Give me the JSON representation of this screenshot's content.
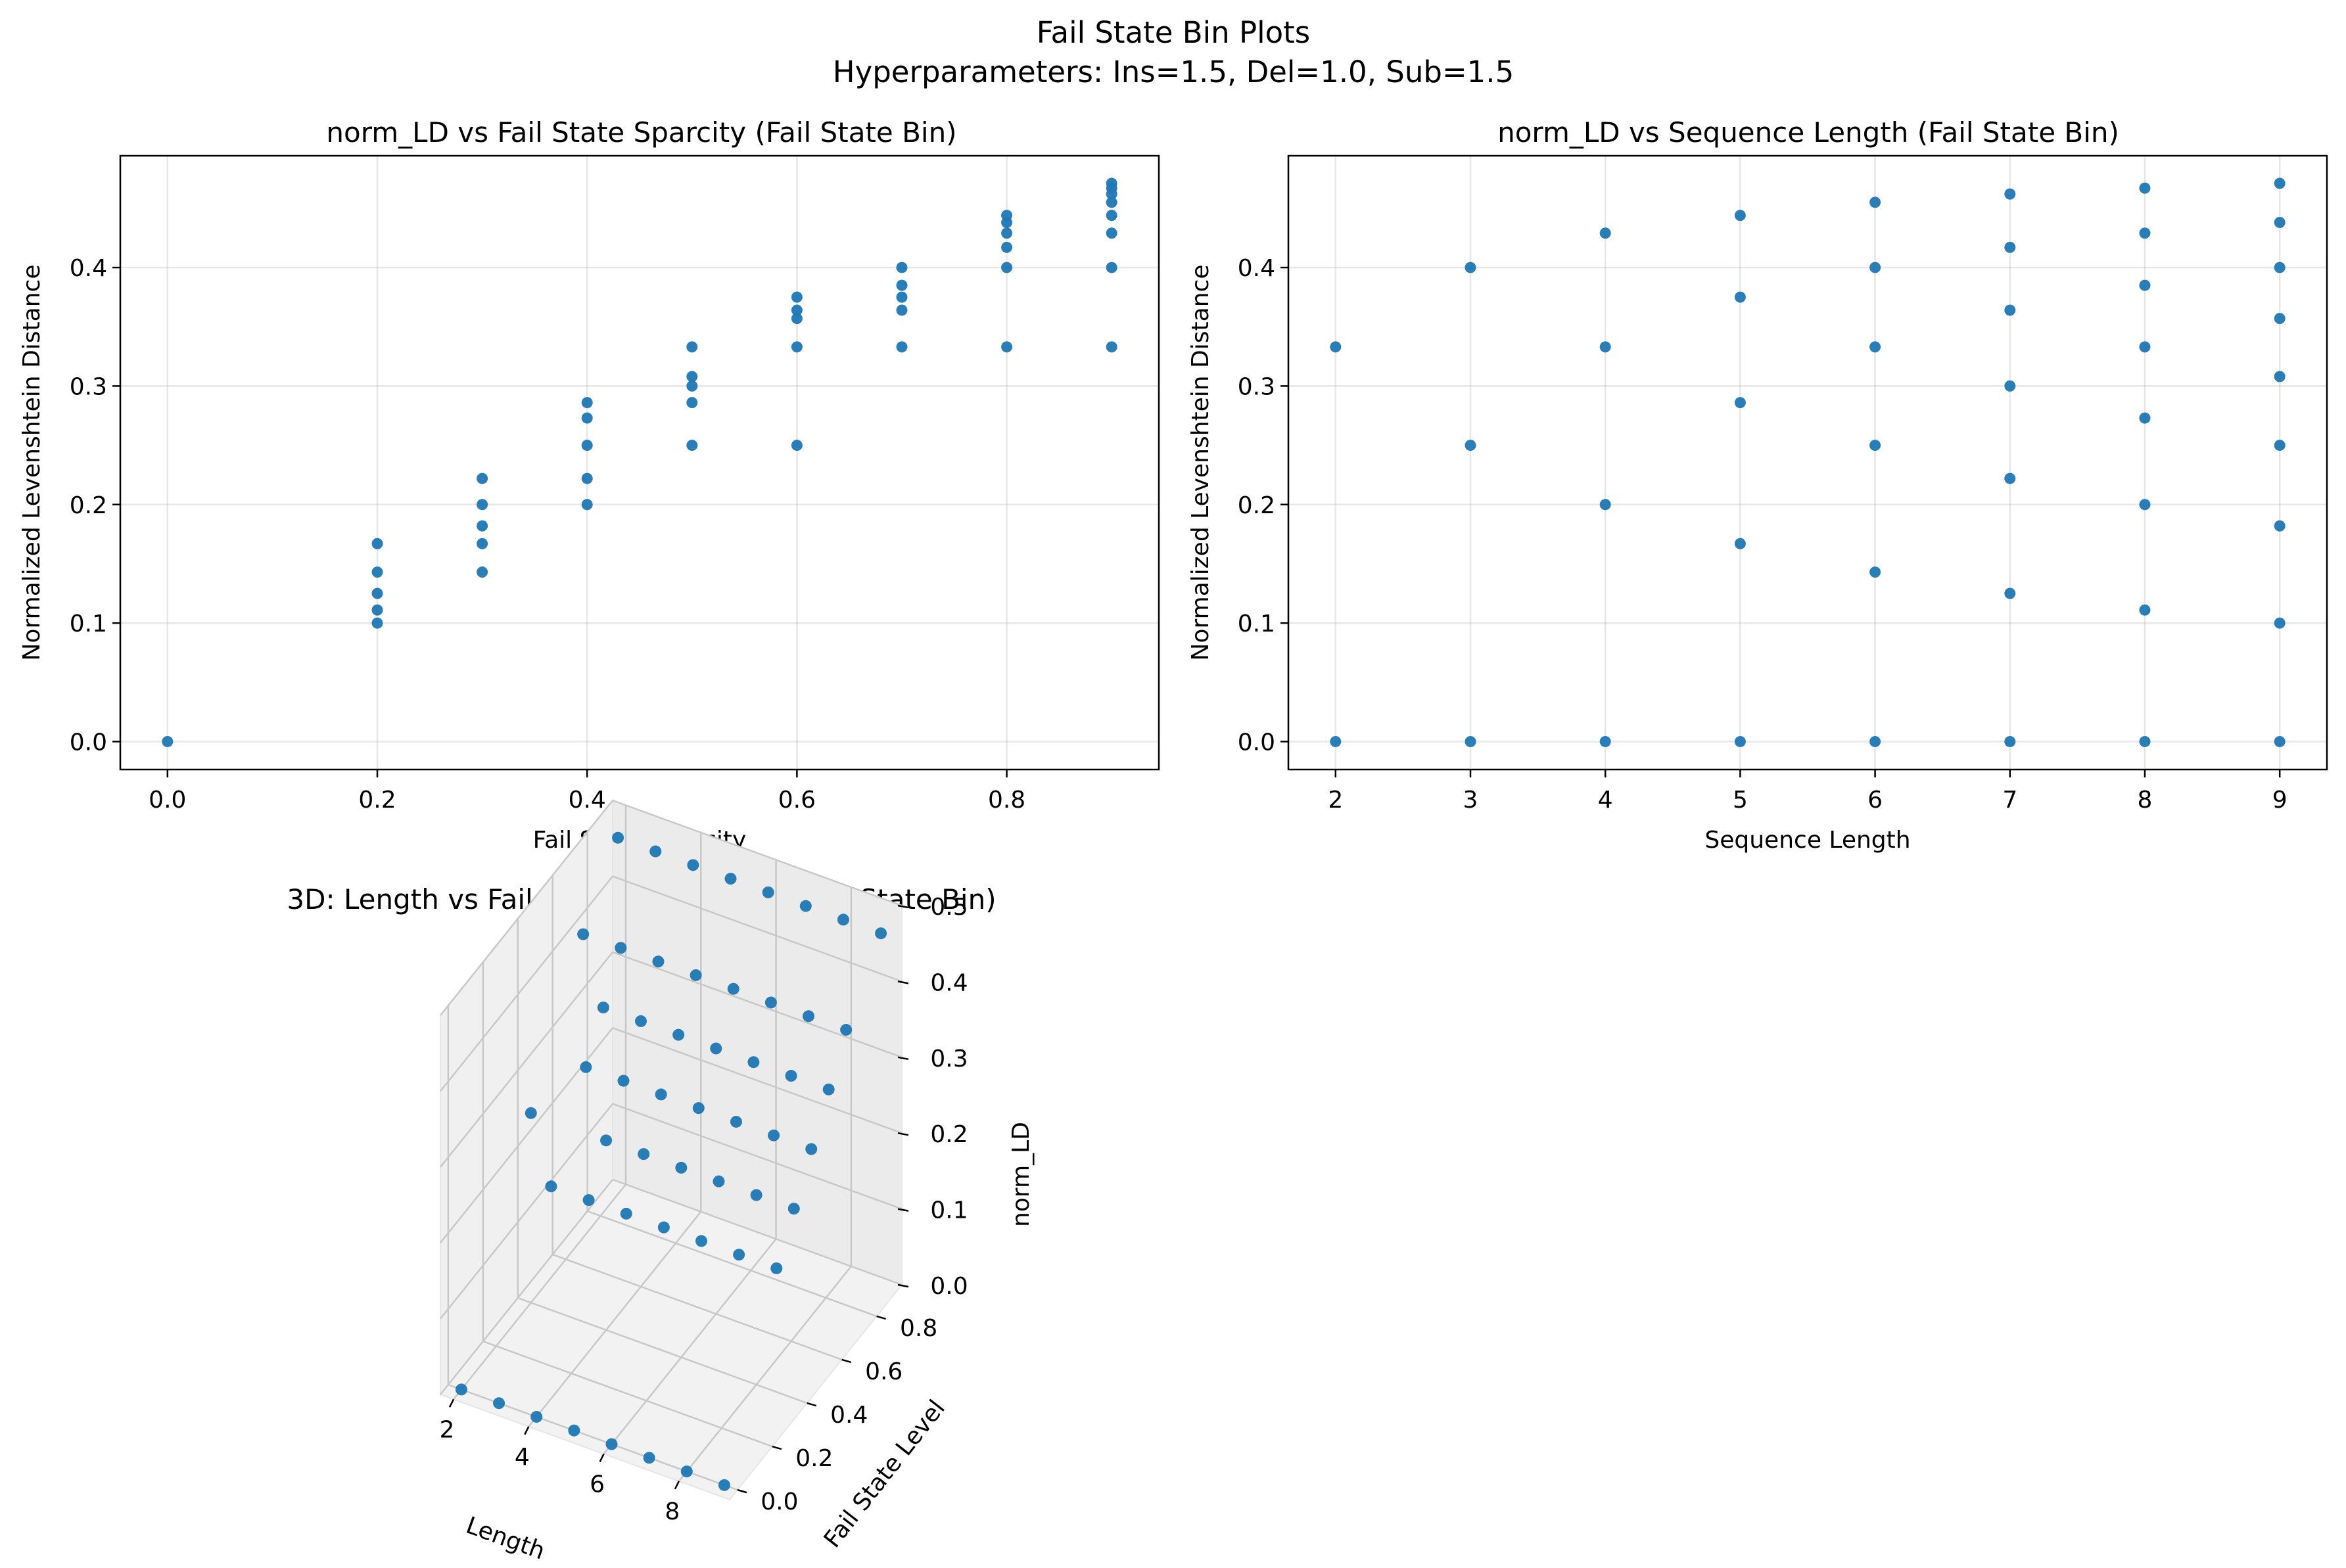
{
  "figure": {
    "title_line1": "Fail State Bin Plots",
    "title_line2": "Hyperparameters: Ins=1.5, Del=1.0, Sub=1.5"
  },
  "colors": {
    "marker": "#1f77b4"
  },
  "chart_data": [
    {
      "type": "scatter",
      "title": "norm_LD vs Fail State Sparcity (Fail State Bin)",
      "xlabel": "Fail State Sparcity",
      "ylabel": "Normalized Levenshtein Distance",
      "xlim": [
        -0.045,
        0.945
      ],
      "ylim": [
        -0.0236,
        0.4943
      ],
      "xticks": [
        0.0,
        0.2,
        0.4,
        0.6,
        0.8
      ],
      "xtick_labels": [
        "0.0",
        "0.2",
        "0.4",
        "0.6",
        "0.8"
      ],
      "yticks": [
        0.0,
        0.1,
        0.2,
        0.3,
        0.4
      ],
      "ytick_labels": [
        "0.0",
        "0.1",
        "0.2",
        "0.3",
        "0.4"
      ],
      "grid": true,
      "points": [
        [
          0.0,
          0.0
        ],
        [
          0.2,
          0.1
        ],
        [
          0.2,
          0.111
        ],
        [
          0.2,
          0.125
        ],
        [
          0.2,
          0.143
        ],
        [
          0.2,
          0.167
        ],
        [
          0.3,
          0.143
        ],
        [
          0.3,
          0.167
        ],
        [
          0.3,
          0.182
        ],
        [
          0.3,
          0.2
        ],
        [
          0.3,
          0.222
        ],
        [
          0.4,
          0.2
        ],
        [
          0.4,
          0.222
        ],
        [
          0.4,
          0.25
        ],
        [
          0.4,
          0.273
        ],
        [
          0.4,
          0.286
        ],
        [
          0.5,
          0.25
        ],
        [
          0.5,
          0.286
        ],
        [
          0.5,
          0.3
        ],
        [
          0.5,
          0.308
        ],
        [
          0.5,
          0.333
        ],
        [
          0.6,
          0.25
        ],
        [
          0.6,
          0.333
        ],
        [
          0.6,
          0.357
        ],
        [
          0.6,
          0.364
        ],
        [
          0.6,
          0.375
        ],
        [
          0.7,
          0.333
        ],
        [
          0.7,
          0.364
        ],
        [
          0.7,
          0.375
        ],
        [
          0.7,
          0.385
        ],
        [
          0.7,
          0.4
        ],
        [
          0.8,
          0.333
        ],
        [
          0.8,
          0.4
        ],
        [
          0.8,
          0.417
        ],
        [
          0.8,
          0.429
        ],
        [
          0.8,
          0.438
        ],
        [
          0.8,
          0.444
        ],
        [
          0.9,
          0.333
        ],
        [
          0.9,
          0.4
        ],
        [
          0.9,
          0.429
        ],
        [
          0.9,
          0.444
        ],
        [
          0.9,
          0.455
        ],
        [
          0.9,
          0.462
        ],
        [
          0.9,
          0.467
        ],
        [
          0.9,
          0.471
        ]
      ]
    },
    {
      "type": "scatter",
      "title": "norm_LD vs Sequence Length (Fail State Bin)",
      "xlabel": "Sequence Length",
      "ylabel": "Normalized Levenshtein Distance",
      "xlim": [
        1.65,
        9.35
      ],
      "ylim": [
        -0.0236,
        0.4943
      ],
      "xticks": [
        2,
        3,
        4,
        5,
        6,
        7,
        8,
        9
      ],
      "xtick_labels": [
        "2",
        "3",
        "4",
        "5",
        "6",
        "7",
        "8",
        "9"
      ],
      "yticks": [
        0.0,
        0.1,
        0.2,
        0.3,
        0.4
      ],
      "ytick_labels": [
        "0.0",
        "0.1",
        "0.2",
        "0.3",
        "0.4"
      ],
      "grid": true,
      "points": [
        [
          2,
          0.0
        ],
        [
          2,
          0.333
        ],
        [
          3,
          0.0
        ],
        [
          3,
          0.25
        ],
        [
          3,
          0.4
        ],
        [
          4,
          0.0
        ],
        [
          4,
          0.2
        ],
        [
          4,
          0.333
        ],
        [
          4,
          0.429
        ],
        [
          5,
          0.0
        ],
        [
          5,
          0.167
        ],
        [
          5,
          0.286
        ],
        [
          5,
          0.375
        ],
        [
          5,
          0.444
        ],
        [
          6,
          0.0
        ],
        [
          6,
          0.143
        ],
        [
          6,
          0.25
        ],
        [
          6,
          0.333
        ],
        [
          6,
          0.4
        ],
        [
          6,
          0.455
        ],
        [
          7,
          0.0
        ],
        [
          7,
          0.125
        ],
        [
          7,
          0.222
        ],
        [
          7,
          0.3
        ],
        [
          7,
          0.364
        ],
        [
          7,
          0.417
        ],
        [
          7,
          0.462
        ],
        [
          8,
          0.0
        ],
        [
          8,
          0.111
        ],
        [
          8,
          0.2
        ],
        [
          8,
          0.273
        ],
        [
          8,
          0.333
        ],
        [
          8,
          0.385
        ],
        [
          8,
          0.429
        ],
        [
          8,
          0.467
        ],
        [
          9,
          0.0
        ],
        [
          9,
          0.1
        ],
        [
          9,
          0.182
        ],
        [
          9,
          0.25
        ],
        [
          9,
          0.308
        ],
        [
          9,
          0.357
        ],
        [
          9,
          0.4
        ],
        [
          9,
          0.438
        ],
        [
          9,
          0.471
        ]
      ]
    },
    {
      "type": "scatter3d",
      "title": "3D: Length vs Fail State vs norm_LD (Fail State Bin)",
      "xlabel": "Length",
      "ylabel": "Fail State Level",
      "zlabel": "norm_LD",
      "xlim": [
        1.65,
        9.35
      ],
      "ylim": [
        -0.045,
        0.945
      ],
      "zlim": [
        0.0,
        0.5
      ],
      "xticks": [
        2,
        4,
        6,
        8
      ],
      "xtick_labels": [
        "2",
        "4",
        "6",
        "8"
      ],
      "yticks": [
        0.0,
        0.2,
        0.4,
        0.6,
        0.8
      ],
      "ytick_labels": [
        "0.0",
        "0.2",
        "0.4",
        "0.6",
        "0.8"
      ],
      "zticks": [
        0.0,
        0.1,
        0.2,
        0.3,
        0.4,
        0.5
      ],
      "ztick_labels": [
        "0.0",
        "0.1",
        "0.2",
        "0.3",
        "0.4",
        "0.5"
      ],
      "points_note_format": "[length, fail_state_level, norm_LD]",
      "points": [
        [
          2,
          0.0,
          0.0
        ],
        [
          3,
          0.0,
          0.0
        ],
        [
          4,
          0.0,
          0.0
        ],
        [
          5,
          0.0,
          0.0
        ],
        [
          6,
          0.0,
          0.0
        ],
        [
          7,
          0.0,
          0.0
        ],
        [
          8,
          0.0,
          0.0
        ],
        [
          9,
          0.0,
          0.0
        ],
        [
          3,
          0.3,
          0.2
        ],
        [
          4,
          0.3,
          0.2
        ],
        [
          5,
          0.3,
          0.2
        ],
        [
          6,
          0.3,
          0.2
        ],
        [
          7,
          0.3,
          0.2
        ],
        [
          8,
          0.3,
          0.2
        ],
        [
          9,
          0.3,
          0.2
        ],
        [
          2,
          0.4,
          0.25
        ],
        [
          4,
          0.4,
          0.25
        ],
        [
          5,
          0.4,
          0.25
        ],
        [
          6,
          0.4,
          0.25
        ],
        [
          7,
          0.4,
          0.25
        ],
        [
          8,
          0.4,
          0.25
        ],
        [
          9,
          0.4,
          0.25
        ],
        [
          3,
          0.5,
          0.3
        ],
        [
          4,
          0.5,
          0.3
        ],
        [
          5,
          0.5,
          0.3
        ],
        [
          6,
          0.5,
          0.3
        ],
        [
          7,
          0.5,
          0.3
        ],
        [
          8,
          0.5,
          0.3
        ],
        [
          9,
          0.5,
          0.3
        ],
        [
          3,
          0.6,
          0.35
        ],
        [
          4,
          0.6,
          0.35
        ],
        [
          5,
          0.6,
          0.35
        ],
        [
          6,
          0.6,
          0.35
        ],
        [
          7,
          0.6,
          0.35
        ],
        [
          8,
          0.6,
          0.35
        ],
        [
          9,
          0.6,
          0.35
        ],
        [
          2,
          0.7,
          0.4
        ],
        [
          3,
          0.7,
          0.4
        ],
        [
          4,
          0.7,
          0.4
        ],
        [
          5,
          0.7,
          0.4
        ],
        [
          6,
          0.7,
          0.4
        ],
        [
          7,
          0.7,
          0.4
        ],
        [
          8,
          0.7,
          0.4
        ],
        [
          9,
          0.7,
          0.4
        ],
        [
          2,
          0.9,
          0.47
        ],
        [
          3,
          0.9,
          0.47
        ],
        [
          4,
          0.9,
          0.47
        ],
        [
          5,
          0.9,
          0.47
        ],
        [
          6,
          0.9,
          0.47
        ],
        [
          7,
          0.9,
          0.47
        ],
        [
          8,
          0.9,
          0.47
        ],
        [
          9,
          0.9,
          0.47
        ]
      ]
    }
  ]
}
